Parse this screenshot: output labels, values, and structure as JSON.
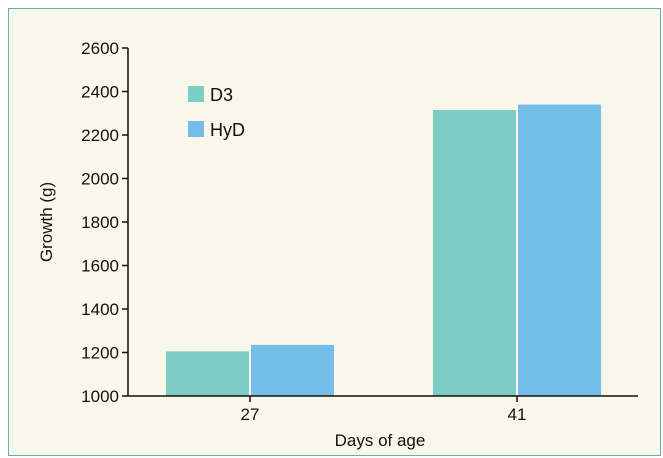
{
  "chart_data": {
    "type": "bar",
    "title": "",
    "xlabel": "Days of age",
    "ylabel": "Growth (g)",
    "ylim": [
      1000,
      2600
    ],
    "yticks": [
      1000,
      1200,
      1400,
      1600,
      1800,
      2000,
      2200,
      2400,
      2600
    ],
    "categories": [
      "27",
      "41"
    ],
    "series": [
      {
        "name": "D3",
        "values": [
          1205,
          2315
        ],
        "color": "#7ecdc4"
      },
      {
        "name": "HyD",
        "values": [
          1235,
          2340
        ],
        "color": "#74bde8"
      }
    ],
    "legend_position": "top-left",
    "grid": false
  },
  "frame": {
    "border_color": "#56b8ad",
    "background": "#f9f7ea"
  }
}
